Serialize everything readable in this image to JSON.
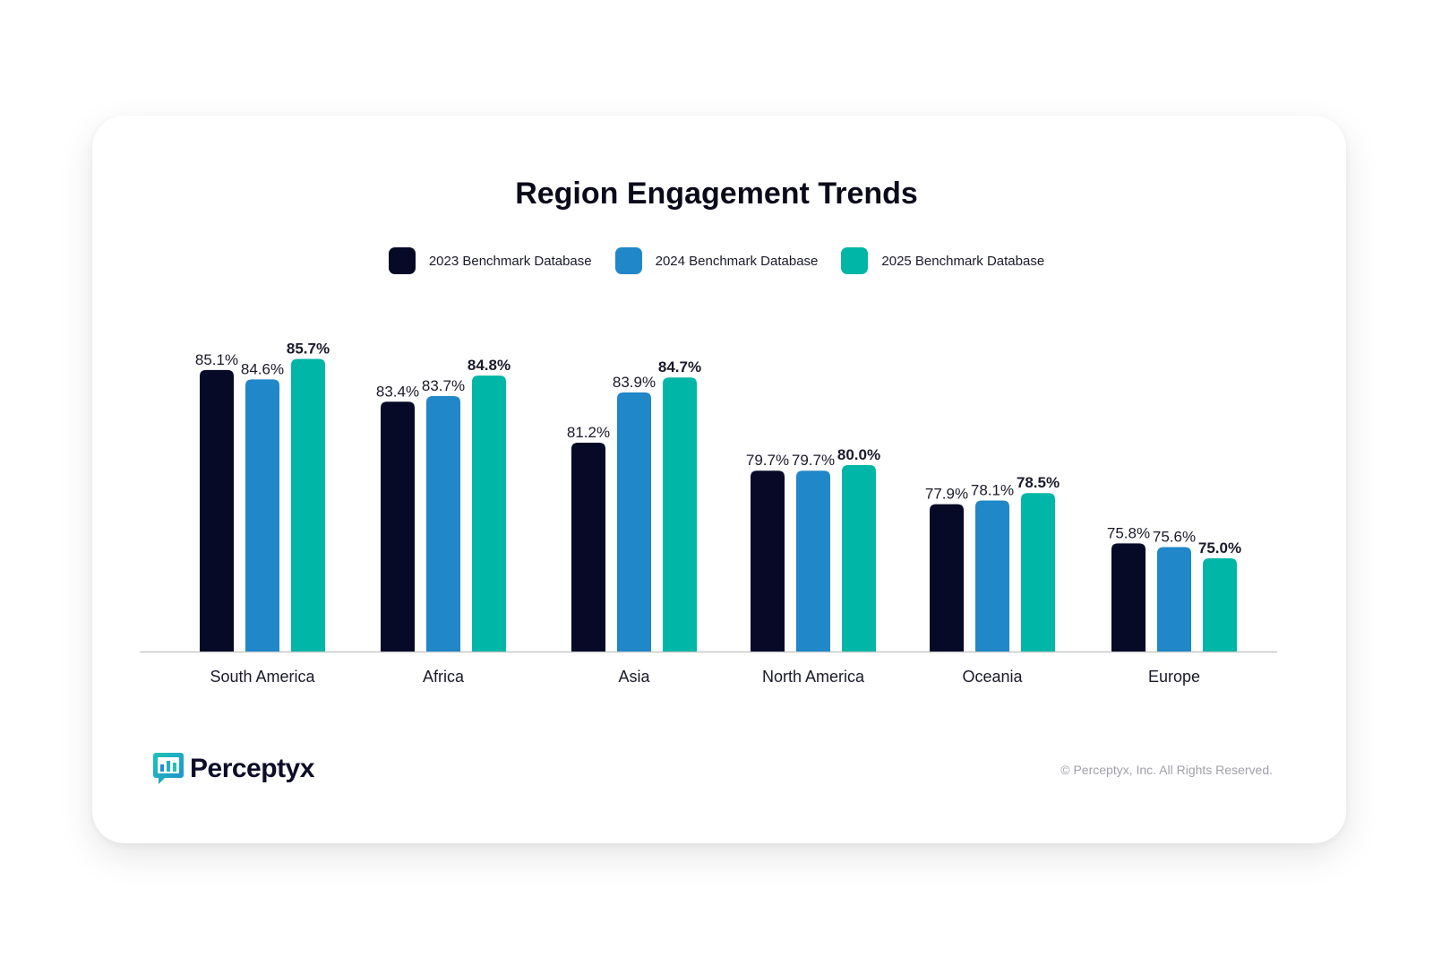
{
  "colors": {
    "y2023": "#060a27",
    "y2024": "#2087c8",
    "y2025": "#00b6a6",
    "axis": "#c8c8c8"
  },
  "footer": {
    "logo_text": "Perceptyx",
    "logo_icon": "speech-bubble-bar-chart-icon",
    "copyright": "© Perceptyx, Inc. All Rights Reserved."
  },
  "chart_data": {
    "type": "bar",
    "title": "Region Engagement Trends",
    "xlabel": "",
    "ylabel": "",
    "grid": false,
    "legend_position": "top-center",
    "categories": [
      "South America",
      "Africa",
      "Asia",
      "North America",
      "Oceania",
      "Europe"
    ],
    "series": [
      {
        "name": "2023 Benchmark Database",
        "values": [
          85.1,
          83.4,
          81.2,
          79.7,
          77.9,
          75.8
        ],
        "labels": [
          "85.1%",
          "83.4%",
          "81.2%",
          "79.7%",
          "77.9%",
          "75.8%"
        ]
      },
      {
        "name": "2024 Benchmark Database",
        "values": [
          84.6,
          83.7,
          83.9,
          79.7,
          78.1,
          75.6
        ],
        "labels": [
          "84.6%",
          "83.7%",
          "83.9%",
          "79.7%",
          "78.1%",
          "75.6%"
        ]
      },
      {
        "name": "2025 Benchmark Database",
        "values": [
          85.7,
          84.8,
          84.7,
          80.0,
          78.5,
          75.0
        ],
        "labels": [
          "85.7%",
          "84.8%",
          "84.7%",
          "80.0%",
          "78.5%",
          "75.0%"
        ]
      }
    ],
    "highlight_series": "2025 Benchmark Database"
  }
}
